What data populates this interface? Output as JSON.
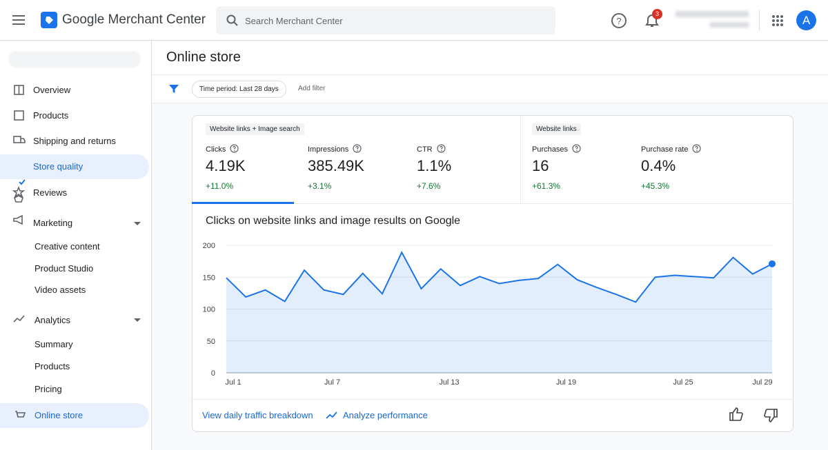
{
  "header": {
    "app_name": "Google Merchant Center",
    "search_placeholder": "Search Merchant Center",
    "notification_count": 3,
    "avatar": "A"
  },
  "sidebar": {
    "items": [
      "Overview",
      "Products",
      "Shipping and returns",
      "Store quality",
      "Reviews",
      "Marketing",
      "Creative content",
      "Product Studio",
      "Video assets",
      "Analytics",
      "Summary",
      "Products",
      "Pricing",
      "Online store"
    ]
  },
  "page": {
    "title": "Online store",
    "filter_chip": "Time period: Last 28 days",
    "add_filter": "Add filter"
  },
  "metrics": {
    "groups": [
      "Website links + Image search",
      "Website links"
    ],
    "items": [
      {
        "name": "Clicks",
        "value": "4.19K",
        "change": "+11.0%"
      },
      {
        "name": "Impressions",
        "value": "385.49K",
        "change": "+3.1%"
      },
      {
        "name": "CTR",
        "value": "1.1%",
        "change": "+7.6%"
      },
      {
        "name": "Purchases",
        "value": "16",
        "change": "+61.3%"
      },
      {
        "name": "Purchase rate",
        "value": "0.4%",
        "change": "+45.3%"
      }
    ]
  },
  "chart_data": {
    "type": "line",
    "title": "Clicks on website links and image results on Google",
    "categories": [
      "Jul 1",
      null,
      null,
      null,
      null,
      null,
      "Jul 7",
      null,
      null,
      null,
      null,
      null,
      "Jul 13",
      null,
      null,
      null,
      null,
      null,
      "Jul 19",
      null,
      null,
      null,
      null,
      null,
      "Jul 25",
      null,
      null,
      null,
      "Jul 29"
    ],
    "values": [
      149,
      119,
      130,
      112,
      161,
      130,
      123,
      156,
      124,
      189,
      132,
      163,
      137,
      151,
      140,
      145,
      148,
      170,
      146,
      134,
      123,
      111,
      150,
      153,
      151,
      149,
      181,
      155,
      171
    ],
    "color": "#1a73e8",
    "ylim": [
      0,
      200
    ],
    "yticks": [
      0,
      50,
      100,
      150,
      200
    ],
    "grid": true
  },
  "footer": {
    "link_1": "View daily traffic breakdown",
    "link_2": "Analyze performance"
  }
}
